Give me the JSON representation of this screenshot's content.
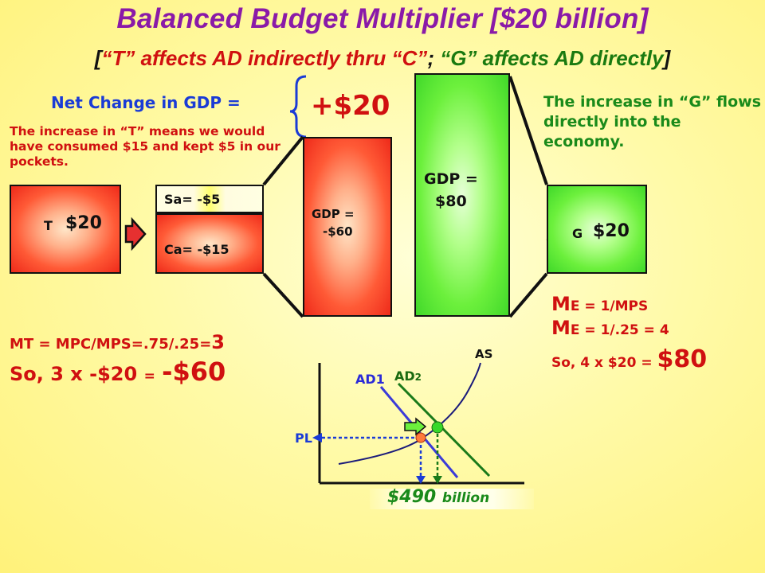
{
  "title": "Balanced Budget Multiplier [$20 billion]",
  "subtitle": {
    "bracket_open": "[",
    "part_t": "“T” affects AD indirectly thru “C”",
    "separator": ";",
    "part_g": "“G” affects AD directly",
    "bracket_close": "]"
  },
  "net_change": {
    "label": "Net Change in GDP =",
    "value": "+$20"
  },
  "tax_note": "The increase in “T” means we would have consumed $15 and kept  $5  in our pockets.",
  "g_note": "The increase in “G” flows directly  into the economy.",
  "tax_box": {
    "letter": "T",
    "amount": "$20"
  },
  "saving_box": {
    "label": "Sa= -$5"
  },
  "consumption_box": {
    "label": "Ca= -$15"
  },
  "gdp_tax_box": {
    "line1": "GDP =",
    "line2": "-$60"
  },
  "gdp_g_box": {
    "line1": "GDP =",
    "line2": "$80"
  },
  "g_box": {
    "letter": "G",
    "amount": "$20"
  },
  "tax_multiplier": {
    "formula": "MT = MPC/MPS=.75/.25=",
    "formula_value": "3",
    "result_prefix": "So, 3 x -$20",
    "result_eq": "=",
    "result_value": "-$60"
  },
  "spending_multiplier": {
    "line1_m": "M",
    "line1_rest": "E = 1/MPS",
    "line2_m": "M",
    "line2_rest": "E = 1/.25 = 4",
    "line3_prefix": "So, 4 x $20",
    "line3_eq": "=",
    "line3_value": "$80"
  },
  "graph": {
    "as_label": "AS",
    "ad1_label": "AD1",
    "ad2_label": "AD",
    "ad2_sub": "2",
    "pl_label": "PL",
    "income_value": "$490",
    "income_unit": "billion"
  },
  "colors": {
    "title": "#8a1aa8",
    "red_text": "#d01010",
    "green_text": "#1a8a1a",
    "blue_text": "#1a3bd6",
    "ad1_line": "#3b3bd8",
    "ad2_line": "#1a7a1a",
    "as_curve": "#1a1a7a"
  }
}
